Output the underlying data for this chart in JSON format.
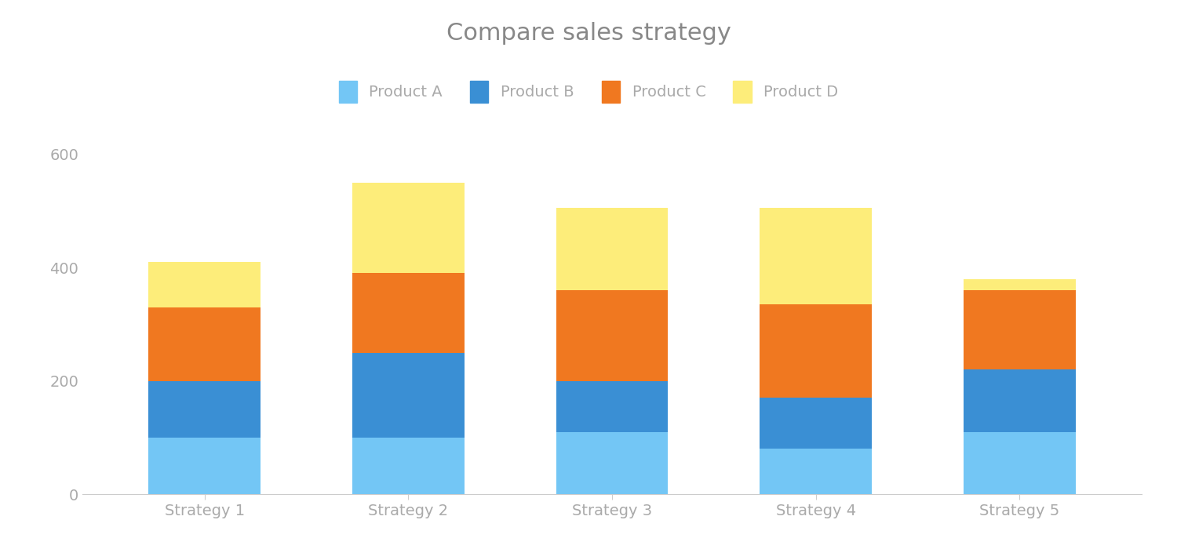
{
  "title": "Compare sales strategy",
  "categories": [
    "Strategy 1",
    "Strategy 2",
    "Strategy 3",
    "Strategy 4",
    "Strategy 5"
  ],
  "products": [
    "Product A",
    "Product B",
    "Product C",
    "Product D"
  ],
  "values": {
    "Product A": [
      100,
      100,
      110,
      80,
      110
    ],
    "Product B": [
      100,
      150,
      90,
      90,
      110
    ],
    "Product C": [
      130,
      140,
      160,
      165,
      140
    ],
    "Product D": [
      80,
      160,
      145,
      170,
      20
    ]
  },
  "colors": {
    "Product A": "#73C6F5",
    "Product B": "#3A8FD4",
    "Product C": "#F07820",
    "Product D": "#FDED7A"
  },
  "ylim": [
    0,
    640
  ],
  "yticks": [
    0,
    200,
    400,
    600
  ],
  "background_color": "#FFFFFF",
  "title_color": "#888888",
  "tick_color": "#AAAAAA",
  "bar_width": 0.55,
  "title_fontsize": 22,
  "legend_fontsize": 14,
  "tick_fontsize": 14
}
